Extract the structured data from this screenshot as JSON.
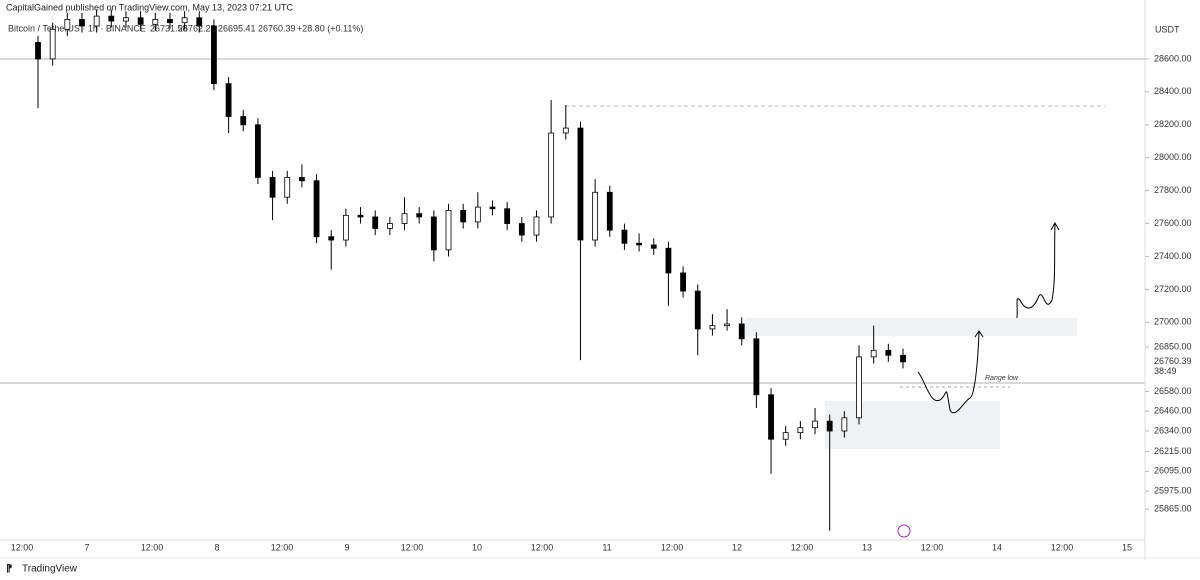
{
  "header": {
    "publisher": "CapitalGained published on TradingView.com, May 13, 2023 07:21 UTC",
    "open": "26731.58",
    "high": "26762.28",
    "low": "26695.41",
    "close": "26760.39",
    "change": "+28.80 (+0.11%)"
  },
  "footer": {
    "brand": "TradingView"
  },
  "chart_data": {
    "type": "candlestick",
    "currency": "USDT",
    "annotation": "Range low",
    "last_price": "26760.39",
    "countdown": "38:49",
    "up_color": "#ffffff",
    "down_color": "#000000",
    "x_labels": [
      "12:00",
      "7",
      "12:00",
      "8",
      "12:00",
      "9",
      "12:00",
      "10",
      "12:00",
      "11",
      "12:00",
      "12",
      "12:00",
      "13",
      "12:00",
      "14",
      "12:00",
      "15"
    ],
    "open": [
      28700,
      28600,
      28780,
      28840,
      28800,
      28860,
      28830,
      28850,
      28810,
      28840,
      28820,
      28850,
      28800,
      28450,
      28250,
      28200,
      27880,
      27760,
      27880,
      27860,
      27520,
      27500,
      27650,
      27640,
      27570,
      27600,
      27660,
      27640,
      27440,
      27680,
      27610,
      27700,
      27690,
      27600,
      27530,
      27640,
      28150,
      28180,
      27500,
      27790,
      27560,
      27480,
      27470,
      27450,
      27300,
      27190,
      26960,
      26980,
      26990,
      26900,
      26560,
      26290,
      26330,
      26360,
      26400,
      26340,
      26420,
      26790,
      26830,
      26800
    ],
    "high": [
      28740,
      28820,
      28880,
      28880,
      28900,
      28900,
      28890,
      28890,
      28880,
      28880,
      28890,
      28890,
      28840,
      28490,
      28290,
      28240,
      27920,
      27920,
      27960,
      27900,
      27560,
      27690,
      27700,
      27680,
      27640,
      27760,
      27700,
      27680,
      27720,
      27720,
      27790,
      27740,
      27730,
      27640,
      27680,
      28350,
      28320,
      28220,
      27870,
      27830,
      27600,
      27540,
      27510,
      27490,
      27340,
      27230,
      27050,
      27080,
      27030,
      26940,
      26600,
      26370,
      26400,
      26480,
      26440,
      26460,
      26860,
      26980,
      26870,
      26840
    ],
    "low": [
      28300,
      28560,
      28740,
      28760,
      28760,
      28790,
      28790,
      28770,
      28770,
      28780,
      28780,
      28760,
      28410,
      28150,
      28160,
      27840,
      27620,
      27720,
      27820,
      27480,
      27320,
      27460,
      27600,
      27530,
      27530,
      27560,
      27600,
      27370,
      27400,
      27570,
      27570,
      27650,
      27560,
      27490,
      27490,
      27600,
      28110,
      26770,
      27460,
      27520,
      27440,
      27430,
      27410,
      27100,
      27150,
      26800,
      26920,
      26950,
      26860,
      26480,
      26080,
      26250,
      26290,
      26320,
      25735,
      26300,
      26380,
      26750,
      26760,
      26720
    ],
    "close": [
      28600,
      28780,
      28840,
      28800,
      28860,
      28830,
      28850,
      28810,
      28840,
      28820,
      28850,
      28800,
      28450,
      28250,
      28200,
      27880,
      27760,
      27880,
      27860,
      27520,
      27500,
      27650,
      27640,
      27570,
      27600,
      27660,
      27640,
      27440,
      27680,
      27610,
      27700,
      27690,
      27600,
      27530,
      27640,
      28150,
      28180,
      27500,
      27790,
      27560,
      27480,
      27470,
      27450,
      27300,
      27190,
      26960,
      26980,
      26990,
      26900,
      26560,
      26290,
      26330,
      26360,
      26400,
      26340,
      26420,
      26790,
      26830,
      26800,
      26760
    ],
    "ylim": [
      25690,
      28885
    ],
    "yticks": [
      {
        "value": 28600,
        "label": "28600.00"
      },
      {
        "value": 28400,
        "label": "28400.00"
      },
      {
        "value": 28200,
        "label": "28200.00"
      },
      {
        "value": 28000,
        "label": "28000.00"
      },
      {
        "value": 27800,
        "label": "27800.00"
      },
      {
        "value": 27600,
        "label": "27600.00"
      },
      {
        "value": 27400,
        "label": "27400.00"
      },
      {
        "value": 27200,
        "label": "27200.00"
      },
      {
        "value": 27000,
        "label": "27000.00"
      },
      {
        "value": 26850,
        "label": "26850.00"
      },
      {
        "value": 26580,
        "label": "26580.00"
      },
      {
        "value": 26460,
        "label": "26460.00"
      },
      {
        "value": 26340,
        "label": "26340.00"
      },
      {
        "value": 26215,
        "label": "26215.00"
      },
      {
        "value": 26095,
        "label": "26095.00"
      },
      {
        "value": 25975,
        "label": "25975.00"
      },
      {
        "value": 25865,
        "label": "25865.00"
      }
    ]
  }
}
